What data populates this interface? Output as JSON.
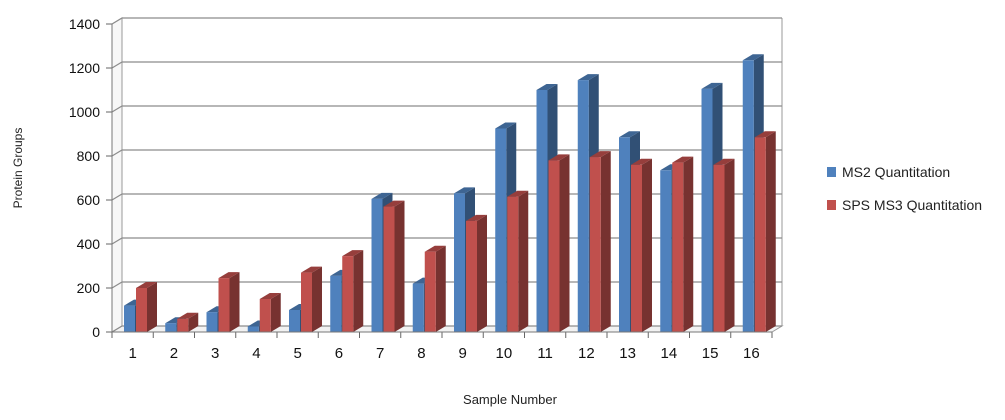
{
  "chart_data": {
    "type": "bar",
    "title": "",
    "xlabel": "Sample Number",
    "ylabel": "Protein Groups",
    "ylim": [
      0,
      1400
    ],
    "yticks": [
      0,
      200,
      400,
      600,
      800,
      1000,
      1200,
      1400
    ],
    "grid": true,
    "legend_position": "right",
    "style": "3d-clustered",
    "categories": [
      "1",
      "2",
      "3",
      "4",
      "5",
      "6",
      "7",
      "8",
      "9",
      "10",
      "11",
      "12",
      "13",
      "14",
      "15",
      "16"
    ],
    "series": [
      {
        "name": "MS2 Quantitation",
        "color": "#4f81bd",
        "values": [
          120,
          40,
          90,
          25,
          100,
          255,
          605,
          220,
          630,
          925,
          1100,
          1145,
          885,
          735,
          1105,
          1235
        ]
      },
      {
        "name": "SPS MS3 Quantitation",
        "color": "#c0504d",
        "values": [
          200,
          60,
          245,
          150,
          270,
          345,
          570,
          365,
          505,
          615,
          780,
          795,
          760,
          770,
          760,
          885
        ]
      }
    ]
  }
}
